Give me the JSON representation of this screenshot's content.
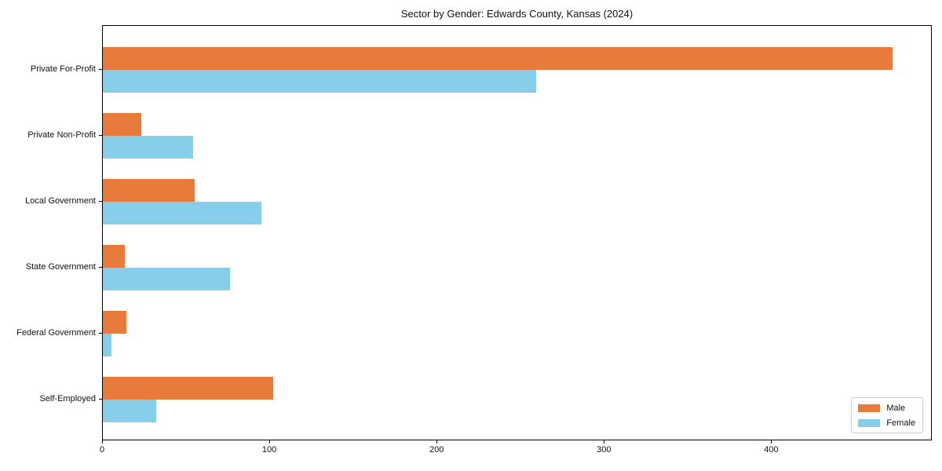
{
  "chart_data": {
    "type": "bar",
    "orientation": "horizontal",
    "title": "Sector by Gender: Edwards County, Kansas (2024)",
    "categories": [
      "Private For-Profit",
      "Private Non-Profit",
      "Local Government",
      "State Government",
      "Federal Government",
      "Self-Employed"
    ],
    "series": [
      {
        "name": "Male",
        "color": "#E87A3C",
        "values": [
          472,
          23,
          55,
          13,
          14,
          102
        ]
      },
      {
        "name": "Female",
        "color": "#87CEEB",
        "values": [
          259,
          54,
          95,
          76,
          5,
          32
        ]
      }
    ],
    "xlabel": "",
    "ylabel": "",
    "xlim": [
      0,
      496
    ],
    "xticks": [
      0,
      100,
      200,
      300,
      400
    ],
    "grid": false,
    "legend": {
      "position": "lower right",
      "entries": [
        "Male",
        "Female"
      ]
    }
  }
}
